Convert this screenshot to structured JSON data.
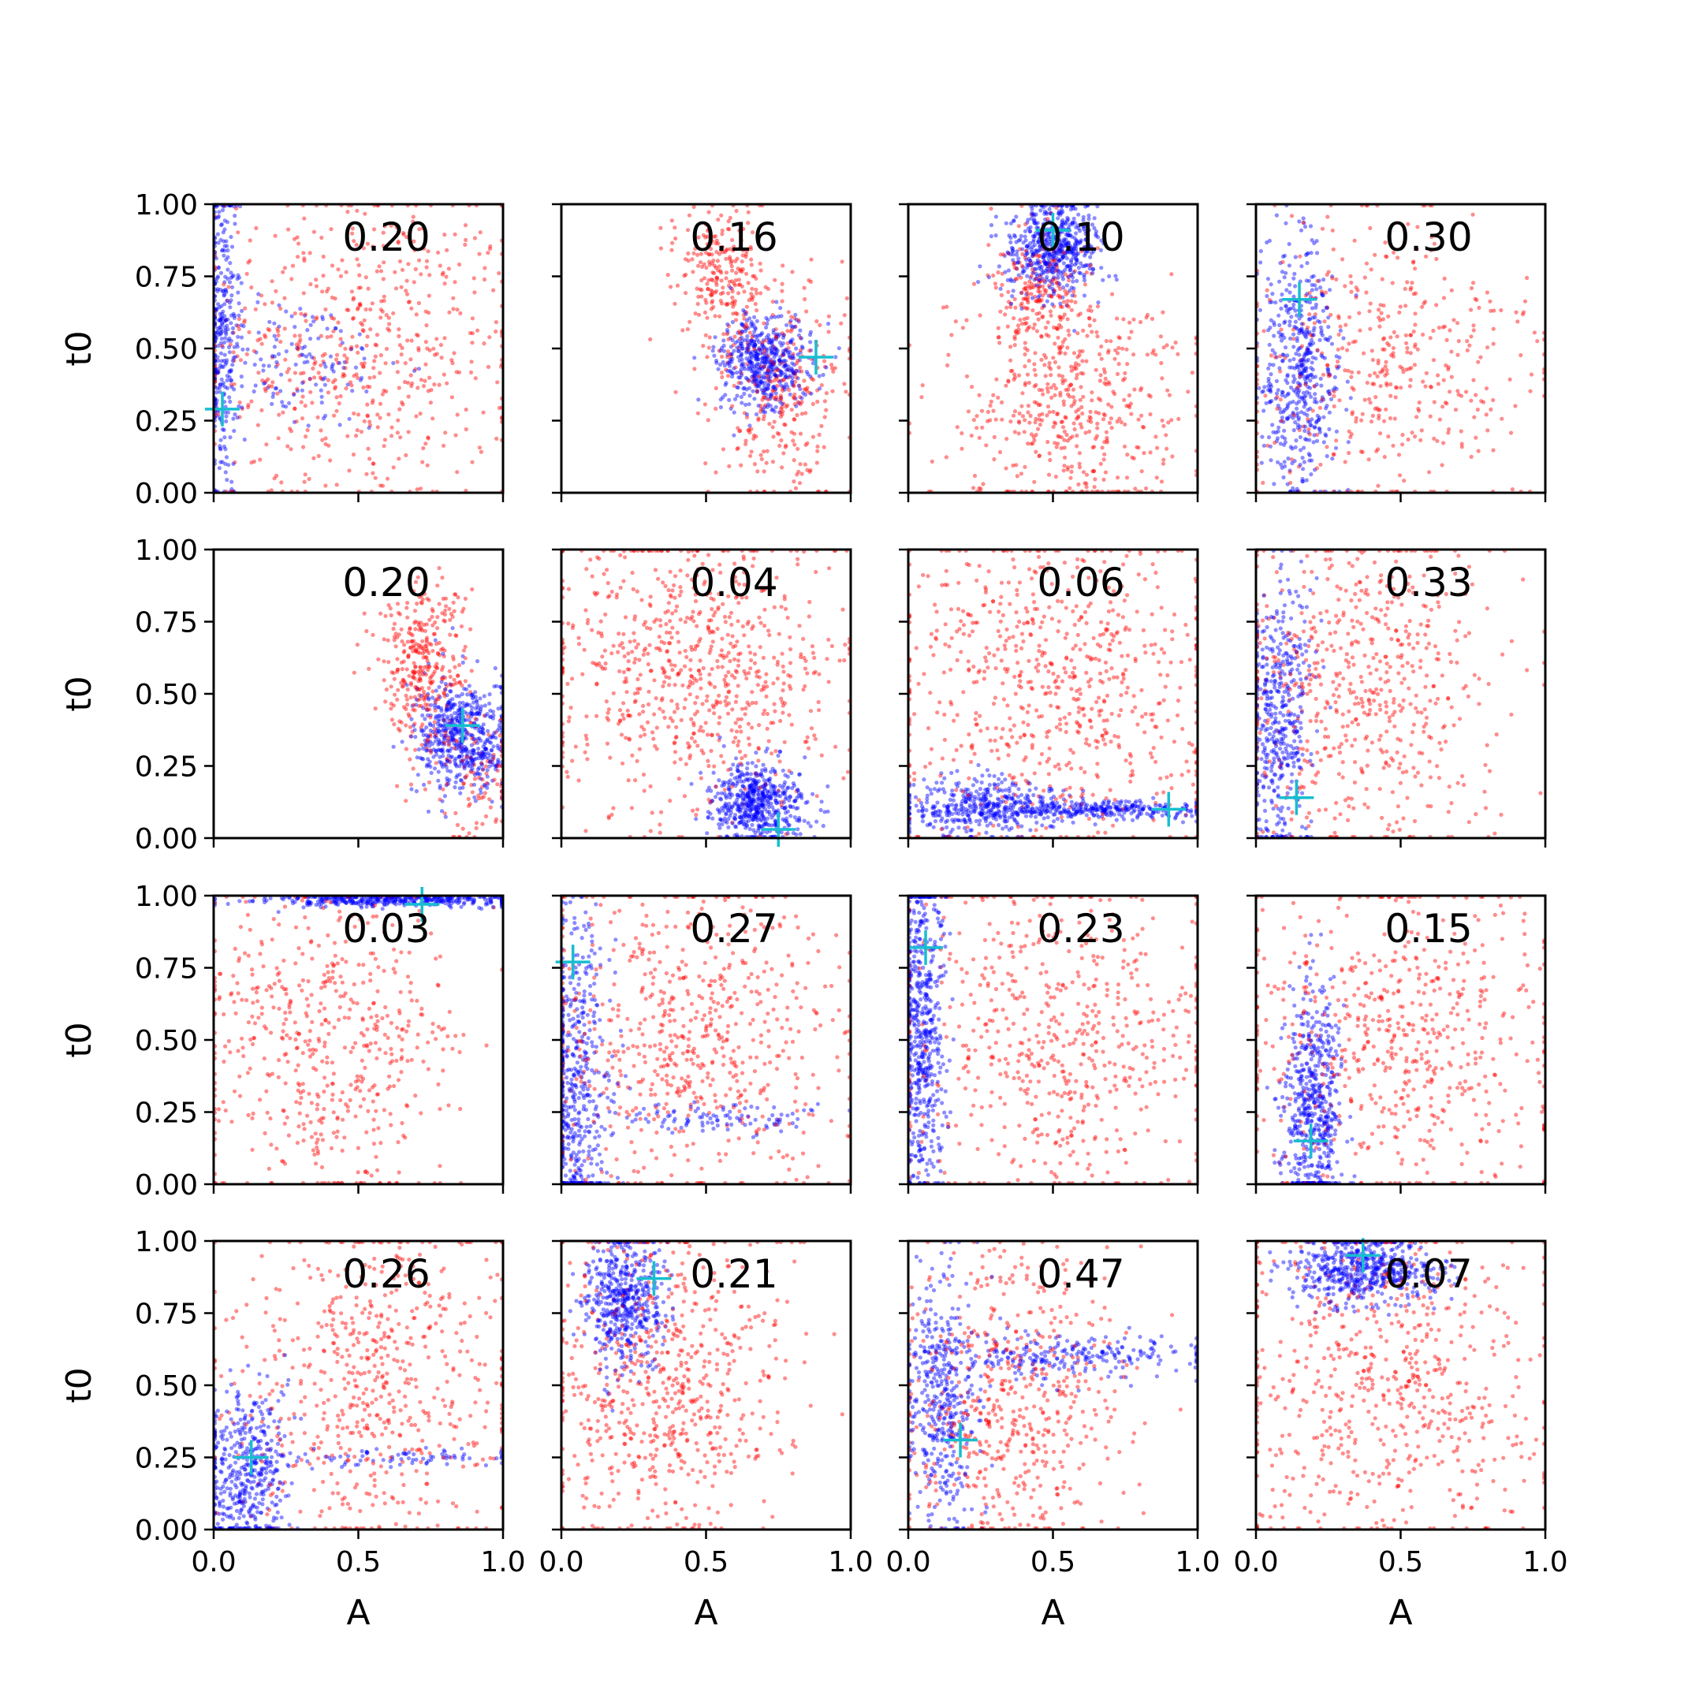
{
  "chart_data": {
    "type": "scatter",
    "layout": {
      "rows": 4,
      "cols": 4
    },
    "xlabel": "A",
    "ylabel": "t0",
    "xlim": [
      0,
      1
    ],
    "ylim": [
      0,
      1
    ],
    "x_ticks": [
      "0.0",
      "0.5",
      "1.0"
    ],
    "y_ticks": [
      "0.00",
      "0.25",
      "0.50",
      "0.75",
      "1.00"
    ],
    "x_tick_values": [
      0,
      0.5,
      1
    ],
    "y_tick_values": [
      0,
      0.25,
      0.5,
      0.75,
      1
    ],
    "colors": {
      "red_series": "#ff0000",
      "blue_series": "#0000ff",
      "marker": "#17becf"
    },
    "marker_symbol": "+",
    "panels": [
      {
        "label": "0.20",
        "marker": [
          0.03,
          0.29
        ],
        "blue": [
          {
            "x": 0.03,
            "y": 0.55,
            "sx": 0.03,
            "sy": 0.28,
            "n": 300
          },
          {
            "x": 0.25,
            "y": 0.45,
            "sx": 0.2,
            "sy": 0.12,
            "n": 150
          }
        ],
        "red": [
          {
            "x": 0.5,
            "y": 0.5,
            "sx": 0.28,
            "sy": 0.28,
            "n": 600
          }
        ]
      },
      {
        "label": "0.16",
        "marker": [
          0.88,
          0.47
        ],
        "blue": [
          {
            "x": 0.7,
            "y": 0.45,
            "sx": 0.08,
            "sy": 0.08,
            "n": 500
          }
        ],
        "red": [
          {
            "x": 0.55,
            "y": 0.75,
            "sx": 0.08,
            "sy": 0.12,
            "n": 250
          },
          {
            "x": 0.75,
            "y": 0.35,
            "sx": 0.12,
            "sy": 0.18,
            "n": 300
          }
        ]
      },
      {
        "label": "0.10",
        "marker": [
          0.5,
          0.91
        ],
        "blue": [
          {
            "x": 0.5,
            "y": 0.85,
            "sx": 0.08,
            "sy": 0.08,
            "n": 550
          }
        ],
        "red": [
          {
            "x": 0.45,
            "y": 0.7,
            "sx": 0.08,
            "sy": 0.12,
            "n": 200
          },
          {
            "x": 0.55,
            "y": 0.3,
            "sx": 0.18,
            "sy": 0.2,
            "n": 500
          }
        ]
      },
      {
        "label": "0.30",
        "marker": [
          0.15,
          0.67
        ],
        "blue": [
          {
            "x": 0.15,
            "y": 0.45,
            "sx": 0.07,
            "sy": 0.22,
            "n": 500
          }
        ],
        "red": [
          {
            "x": 0.45,
            "y": 0.45,
            "sx": 0.25,
            "sy": 0.25,
            "n": 450
          }
        ]
      },
      {
        "label": "0.20",
        "marker": [
          0.86,
          0.39
        ],
        "blue": [
          {
            "x": 0.86,
            "y": 0.35,
            "sx": 0.08,
            "sy": 0.1,
            "n": 550
          }
        ],
        "red": [
          {
            "x": 0.72,
            "y": 0.6,
            "sx": 0.08,
            "sy": 0.15,
            "n": 350
          },
          {
            "x": 0.9,
            "y": 0.2,
            "sx": 0.08,
            "sy": 0.12,
            "n": 100
          }
        ]
      },
      {
        "label": "0.04",
        "marker": [
          0.75,
          0.03
        ],
        "blue": [
          {
            "x": 0.68,
            "y": 0.12,
            "sx": 0.08,
            "sy": 0.07,
            "n": 550
          }
        ],
        "red": [
          {
            "x": 0.45,
            "y": 0.6,
            "sx": 0.25,
            "sy": 0.25,
            "n": 750
          }
        ]
      },
      {
        "label": "0.06",
        "marker": [
          0.9,
          0.1
        ],
        "blue": [
          {
            "x": 0.25,
            "y": 0.11,
            "sx": 0.15,
            "sy": 0.05,
            "n": 400
          },
          {
            "x": 0.65,
            "y": 0.1,
            "sx": 0.2,
            "sy": 0.015,
            "n": 300
          }
        ],
        "red": [
          {
            "x": 0.5,
            "y": 0.55,
            "sx": 0.28,
            "sy": 0.28,
            "n": 700
          }
        ]
      },
      {
        "label": "0.33",
        "marker": [
          0.14,
          0.14
        ],
        "blue": [
          {
            "x": 0.08,
            "y": 0.4,
            "sx": 0.06,
            "sy": 0.25,
            "n": 450
          }
        ],
        "red": [
          {
            "x": 0.35,
            "y": 0.5,
            "sx": 0.25,
            "sy": 0.28,
            "n": 600
          }
        ]
      },
      {
        "label": "0.03",
        "marker": [
          0.72,
          0.97
        ],
        "blue": [
          {
            "x": 0.6,
            "y": 0.985,
            "sx": 0.25,
            "sy": 0.012,
            "n": 400
          }
        ],
        "red": [
          {
            "x": 0.4,
            "y": 0.5,
            "sx": 0.22,
            "sy": 0.28,
            "n": 550
          }
        ]
      },
      {
        "label": "0.27",
        "marker": [
          0.04,
          0.77
        ],
        "blue": [
          {
            "x": 0.05,
            "y": 0.35,
            "sx": 0.06,
            "sy": 0.3,
            "n": 500
          },
          {
            "x": 0.55,
            "y": 0.23,
            "sx": 0.2,
            "sy": 0.03,
            "n": 100
          }
        ],
        "red": [
          {
            "x": 0.45,
            "y": 0.5,
            "sx": 0.28,
            "sy": 0.28,
            "n": 650
          }
        ]
      },
      {
        "label": "0.23",
        "marker": [
          0.06,
          0.82
        ],
        "blue": [
          {
            "x": 0.05,
            "y": 0.55,
            "sx": 0.04,
            "sy": 0.3,
            "n": 550
          }
        ],
        "red": [
          {
            "x": 0.5,
            "y": 0.5,
            "sx": 0.28,
            "sy": 0.28,
            "n": 600
          }
        ]
      },
      {
        "label": "0.15",
        "marker": [
          0.19,
          0.15
        ],
        "blue": [
          {
            "x": 0.2,
            "y": 0.28,
            "sx": 0.05,
            "sy": 0.2,
            "n": 550
          }
        ],
        "red": [
          {
            "x": 0.5,
            "y": 0.5,
            "sx": 0.28,
            "sy": 0.28,
            "n": 600
          }
        ]
      },
      {
        "label": "0.26",
        "marker": [
          0.13,
          0.25
        ],
        "blue": [
          {
            "x": 0.1,
            "y": 0.2,
            "sx": 0.08,
            "sy": 0.15,
            "n": 450
          },
          {
            "x": 0.65,
            "y": 0.25,
            "sx": 0.25,
            "sy": 0.015,
            "n": 80
          }
        ],
        "red": [
          {
            "x": 0.55,
            "y": 0.5,
            "sx": 0.25,
            "sy": 0.28,
            "n": 600
          }
        ]
      },
      {
        "label": "0.21",
        "marker": [
          0.32,
          0.87
        ],
        "blue": [
          {
            "x": 0.22,
            "y": 0.8,
            "sx": 0.07,
            "sy": 0.12,
            "n": 500
          }
        ],
        "red": [
          {
            "x": 0.35,
            "y": 0.5,
            "sx": 0.2,
            "sy": 0.28,
            "n": 650
          }
        ]
      },
      {
        "label": "0.47",
        "marker": [
          0.18,
          0.31
        ],
        "blue": [
          {
            "x": 0.12,
            "y": 0.45,
            "sx": 0.06,
            "sy": 0.22,
            "n": 400
          },
          {
            "x": 0.55,
            "y": 0.6,
            "sx": 0.25,
            "sy": 0.04,
            "n": 250
          }
        ],
        "red": [
          {
            "x": 0.35,
            "y": 0.45,
            "sx": 0.2,
            "sy": 0.25,
            "n": 550
          }
        ]
      },
      {
        "label": "0.07",
        "marker": [
          0.37,
          0.95
        ],
        "blue": [
          {
            "x": 0.38,
            "y": 0.9,
            "sx": 0.12,
            "sy": 0.06,
            "n": 550
          }
        ],
        "red": [
          {
            "x": 0.45,
            "y": 0.5,
            "sx": 0.28,
            "sy": 0.28,
            "n": 650
          }
        ]
      }
    ]
  }
}
